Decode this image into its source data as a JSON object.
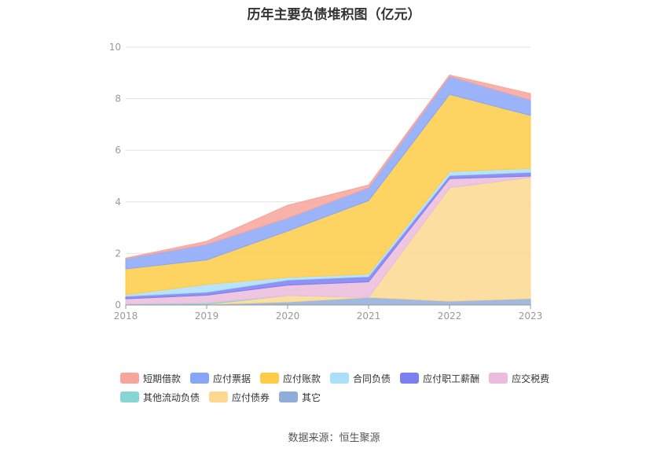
{
  "title": "历年主要负债堆积图（亿元）",
  "source": "数据来源：恒生聚源",
  "chart_data": {
    "type": "area",
    "stacked": true,
    "title": "历年主要负债堆积图（亿元）",
    "x": [
      "2018",
      "2019",
      "2020",
      "2021",
      "2022",
      "2023"
    ],
    "ylim": [
      0,
      10
    ],
    "yticks": [
      0,
      2,
      4,
      6,
      8,
      10
    ],
    "grid": true,
    "legend_position": "bottom",
    "series": [
      {
        "name": "其它",
        "color": "#8eadd9",
        "values": [
          0.02,
          0.02,
          0.12,
          0.3,
          0.15,
          0.25
        ]
      },
      {
        "name": "应付债券",
        "color": "#fdd891",
        "values": [
          0.0,
          0.0,
          0.25,
          0.0,
          4.4,
          4.7
        ]
      },
      {
        "name": "其他流动负债",
        "color": "#86d6d3",
        "values": [
          0.02,
          0.06,
          0.0,
          0.0,
          0.0,
          0.0
        ]
      },
      {
        "name": "应交税费",
        "color": "#ecbcdc",
        "values": [
          0.2,
          0.3,
          0.4,
          0.6,
          0.35,
          0.05
        ]
      },
      {
        "name": "应付职工薪酬",
        "color": "#7b7ff0",
        "values": [
          0.1,
          0.12,
          0.2,
          0.2,
          0.12,
          0.15
        ]
      },
      {
        "name": "合同负债",
        "color": "#aadff9",
        "values": [
          0.06,
          0.3,
          0.1,
          0.1,
          0.15,
          0.15
        ]
      },
      {
        "name": "应付账款",
        "color": "#fdcb47",
        "values": [
          1.0,
          0.95,
          1.8,
          2.85,
          3.0,
          2.05
        ]
      },
      {
        "name": "应付票据",
        "color": "#88a6f8",
        "values": [
          0.4,
          0.6,
          0.5,
          0.5,
          0.7,
          0.6
        ]
      },
      {
        "name": "短期借款",
        "color": "#f7a59b",
        "values": [
          0.02,
          0.12,
          0.5,
          0.1,
          0.05,
          0.25
        ]
      }
    ],
    "legend_order": [
      "短期借款",
      "应付票据",
      "应付账款",
      "合同负债",
      "应付职工薪酬",
      "应交税费",
      "其他流动负债",
      "应付债券",
      "其它"
    ]
  }
}
